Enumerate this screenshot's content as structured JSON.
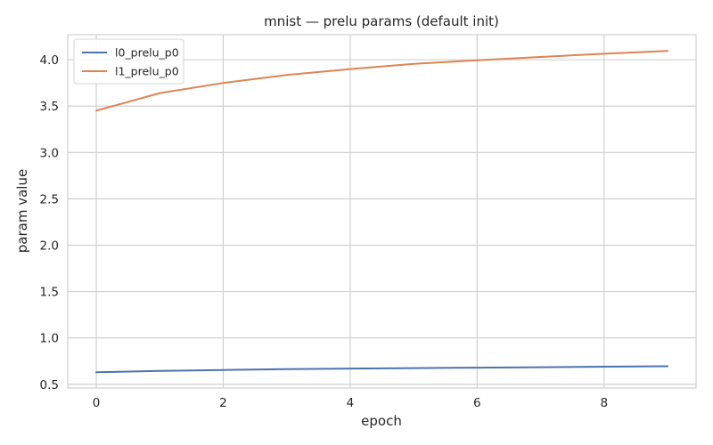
{
  "chart_data": {
    "type": "line",
    "title": "mnist — prelu params (default init)",
    "xlabel": "epoch",
    "ylabel": "param value",
    "xlim": [
      -0.45,
      9.45
    ],
    "ylim": [
      0.46,
      4.27
    ],
    "xticks": [
      0,
      2,
      4,
      6,
      8
    ],
    "yticks": [
      0.5,
      1.0,
      1.5,
      2.0,
      2.5,
      3.0,
      3.5,
      4.0
    ],
    "grid": true,
    "legend_position": "top-left",
    "x": [
      0,
      1,
      2,
      3,
      4,
      5,
      6,
      7,
      8,
      9
    ],
    "series": [
      {
        "name": "l0_prelu_p0",
        "color": "#4c72b0",
        "values": [
          0.63,
          0.645,
          0.655,
          0.663,
          0.67,
          0.675,
          0.68,
          0.685,
          0.69,
          0.695
        ]
      },
      {
        "name": "l1_prelu_p0",
        "color": "#dd8452",
        "values": [
          3.45,
          3.64,
          3.75,
          3.835,
          3.9,
          3.955,
          3.995,
          4.03,
          4.065,
          4.095
        ]
      }
    ]
  }
}
